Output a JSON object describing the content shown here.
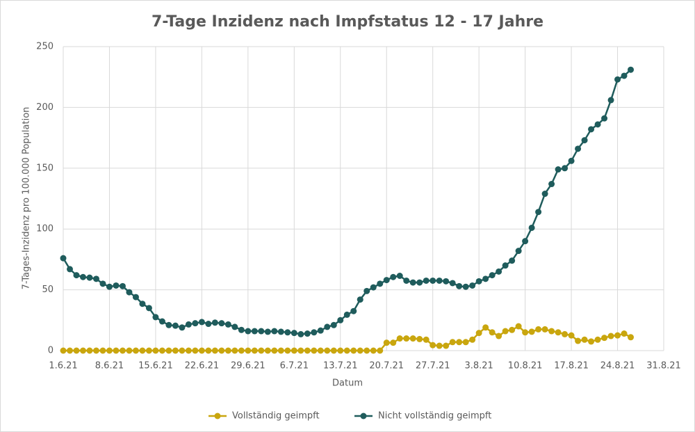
{
  "chart_data": {
    "type": "line",
    "title": "7-Tage Inzidenz nach Impfstatus 12 - 17 Jahre",
    "x_label": "Datum",
    "y_label": "7-Tages-Inzidenz pro 100.000 Population",
    "x": [
      "2021-06-01",
      "2021-06-02",
      "2021-06-03",
      "2021-06-04",
      "2021-06-05",
      "2021-06-06",
      "2021-06-07",
      "2021-06-08",
      "2021-06-09",
      "2021-06-10",
      "2021-06-11",
      "2021-06-12",
      "2021-06-13",
      "2021-06-14",
      "2021-06-15",
      "2021-06-16",
      "2021-06-17",
      "2021-06-18",
      "2021-06-19",
      "2021-06-20",
      "2021-06-21",
      "2021-06-22",
      "2021-06-23",
      "2021-06-24",
      "2021-06-25",
      "2021-06-26",
      "2021-06-27",
      "2021-06-28",
      "2021-06-29",
      "2021-06-30",
      "2021-07-01",
      "2021-07-02",
      "2021-07-03",
      "2021-07-04",
      "2021-07-05",
      "2021-07-06",
      "2021-07-07",
      "2021-07-08",
      "2021-07-09",
      "2021-07-10",
      "2021-07-11",
      "2021-07-12",
      "2021-07-13",
      "2021-07-14",
      "2021-07-15",
      "2021-07-16",
      "2021-07-17",
      "2021-07-18",
      "2021-07-19",
      "2021-07-20",
      "2021-07-21",
      "2021-07-22",
      "2021-07-23",
      "2021-07-24",
      "2021-07-25",
      "2021-07-26",
      "2021-07-27",
      "2021-07-28",
      "2021-07-29",
      "2021-07-30",
      "2021-07-31",
      "2021-08-01",
      "2021-08-02",
      "2021-08-03",
      "2021-08-04",
      "2021-08-05",
      "2021-08-06",
      "2021-08-07",
      "2021-08-08",
      "2021-08-09",
      "2021-08-10",
      "2021-08-11",
      "2021-08-12",
      "2021-08-13",
      "2021-08-14",
      "2021-08-15",
      "2021-08-16",
      "2021-08-17",
      "2021-08-18",
      "2021-08-19",
      "2021-08-20",
      "2021-08-21",
      "2021-08-22",
      "2021-08-23",
      "2021-08-24",
      "2021-08-25",
      "2021-08-26"
    ],
    "series": [
      {
        "name": "Vollständig geimpft",
        "color": "#c9a60e",
        "values": [
          0,
          0,
          0,
          0,
          0,
          0,
          0,
          0,
          0,
          0,
          0,
          0,
          0,
          0,
          0,
          0,
          0,
          0,
          0,
          0,
          0,
          0,
          0,
          0,
          0,
          0,
          0,
          0,
          0,
          0,
          0,
          0,
          0,
          0,
          0,
          0,
          0,
          0,
          0,
          0,
          0,
          0,
          0,
          0,
          0,
          0,
          0,
          0,
          0,
          6.5,
          6.5,
          10,
          10,
          10,
          9.5,
          9,
          4.5,
          4,
          4,
          7,
          7,
          7,
          9,
          14.5,
          19,
          15,
          12,
          16,
          17,
          20,
          15,
          15.5,
          17.5,
          17.5,
          16,
          15,
          13.5,
          12.5,
          8,
          9,
          7.5,
          9,
          10.5,
          12,
          12.5,
          14,
          11
        ]
      },
      {
        "name": "Nicht vollständig geimpft",
        "color": "#1f5c5c",
        "values": [
          76,
          67,
          62,
          60.5,
          60,
          59,
          55,
          52.5,
          53.5,
          53,
          48,
          44,
          38.5,
          35,
          27.5,
          24,
          21,
          20.5,
          19,
          21.5,
          22.5,
          23.5,
          22,
          23,
          22.5,
          21.5,
          19.5,
          17,
          16,
          16,
          16,
          15.5,
          16,
          15.5,
          15,
          14.5,
          13.5,
          14,
          15,
          16.5,
          19.5,
          21,
          25,
          29.5,
          32.5,
          42,
          49,
          52,
          55,
          58,
          60.5,
          61.5,
          57.5,
          56,
          56,
          57.5,
          57.5,
          57.5,
          57,
          55.5,
          53,
          52.5,
          53.5,
          57,
          59,
          62,
          65,
          70,
          74,
          82,
          90,
          101,
          114,
          129,
          137,
          149,
          150,
          156,
          166,
          173,
          182,
          186,
          191,
          206,
          223,
          226,
          231
        ]
      }
    ],
    "xlim": [
      "2021-06-01",
      "2021-08-31"
    ],
    "xticks": [
      {
        "value": "2021-06-01",
        "label": "1.6.21"
      },
      {
        "value": "2021-06-08",
        "label": "8.6.21"
      },
      {
        "value": "2021-06-15",
        "label": "15.6.21"
      },
      {
        "value": "2021-06-22",
        "label": "22.6.21"
      },
      {
        "value": "2021-06-29",
        "label": "29.6.21"
      },
      {
        "value": "2021-07-06",
        "label": "6.7.21"
      },
      {
        "value": "2021-07-13",
        "label": "13.7.21"
      },
      {
        "value": "2021-07-20",
        "label": "20.7.21"
      },
      {
        "value": "2021-07-27",
        "label": "27.7.21"
      },
      {
        "value": "2021-08-03",
        "label": "3.8.21"
      },
      {
        "value": "2021-08-10",
        "label": "10.8.21"
      },
      {
        "value": "2021-08-17",
        "label": "17.8.21"
      },
      {
        "value": "2021-08-24",
        "label": "24.8.21"
      },
      {
        "value": "2021-08-31",
        "label": "31.8.21"
      }
    ],
    "ylim": [
      0,
      250
    ],
    "yticks": [
      0,
      50,
      100,
      150,
      200,
      250
    ],
    "grid": true,
    "legend": "bottom"
  }
}
